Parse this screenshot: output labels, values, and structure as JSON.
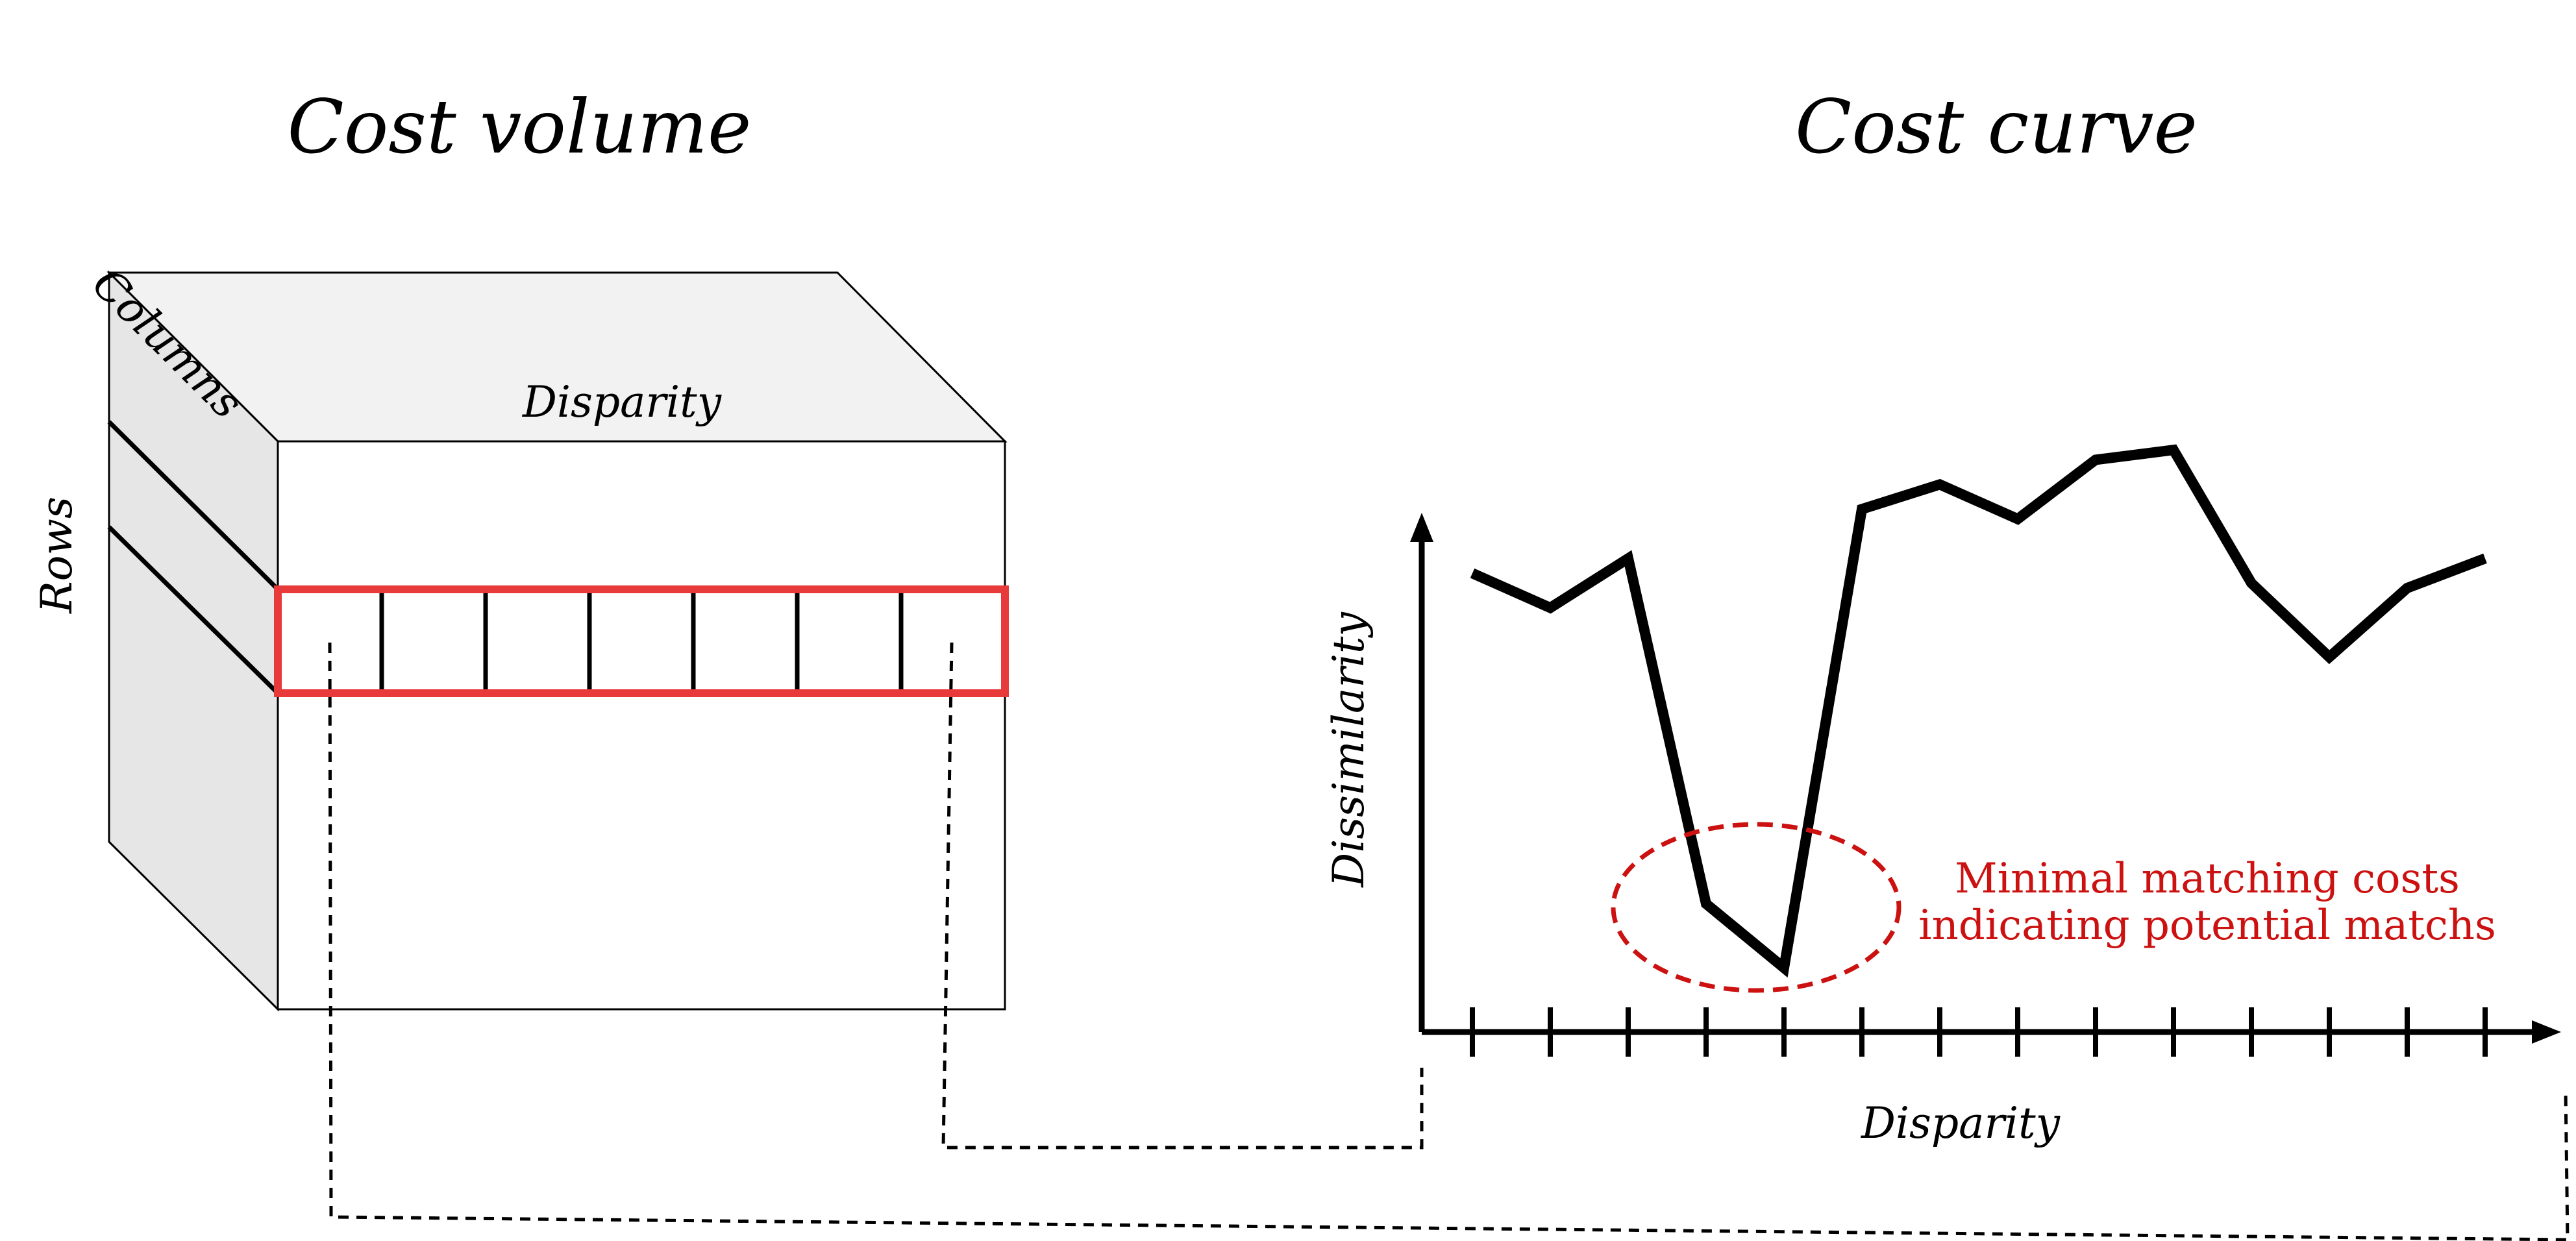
{
  "titles": {
    "left": "Cost volume",
    "right": "Cost curve"
  },
  "cube_labels": {
    "columns": "Columns",
    "disparity": "Disparity",
    "rows": "Rows"
  },
  "chart_labels": {
    "y_axis": "Dissimilarity",
    "x_axis": "Disparity"
  },
  "annotation": {
    "line1": "Minimal matching costs",
    "line2": "indicating potential matchs"
  },
  "colors": {
    "highlight": "#e83a3a",
    "annotation": "#cc1111",
    "cube_top": "#f2f2f2",
    "cube_side": "#e6e6e6",
    "line": "#000000"
  },
  "chart_data": {
    "type": "line",
    "xlabel": "Disparity",
    "ylabel": "Dissimilarity",
    "x": [
      1,
      2,
      3,
      4,
      5,
      6,
      7,
      8,
      9,
      10,
      11,
      12,
      13,
      14
    ],
    "values": [
      0.93,
      0.86,
      0.96,
      0.26,
      0.13,
      1.06,
      1.11,
      1.04,
      1.16,
      1.18,
      0.91,
      0.76,
      0.9,
      0.96
    ],
    "ylim": [
      0,
      1.3
    ],
    "highlighted_minimum_x": [
      4,
      5
    ]
  }
}
